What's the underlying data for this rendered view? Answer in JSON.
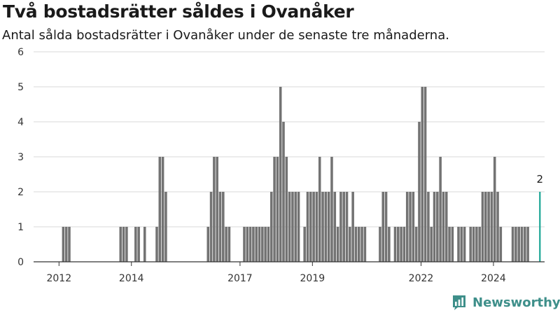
{
  "chart_data": {
    "type": "bar",
    "title": "Två bostadsrätter såldes i Ovanåker",
    "subtitle": "Antal sålda bostadsrätter i Ovanåker under de senaste tre månaderna.",
    "xlabel": "",
    "ylabel": "",
    "ylim": [
      0,
      6
    ],
    "yticks": [
      0,
      1,
      2,
      3,
      4,
      5,
      6
    ],
    "x_start": "2012-01",
    "x_end": "2024-10",
    "xticks": [
      "2012",
      "2014",
      "2017",
      "2019",
      "2022",
      "2024"
    ],
    "grid": true,
    "legend": "none",
    "bar_color": "#737373",
    "highlight_color": "#1aa595",
    "highlight_label": "2",
    "series": [
      {
        "values": [
          0,
          1,
          1,
          1,
          0,
          0,
          0,
          0,
          0,
          0,
          0,
          0,
          0,
          0,
          0,
          0,
          0,
          0,
          0,
          0,
          1,
          1,
          1,
          0,
          0,
          1,
          1,
          0,
          1,
          0,
          0,
          0,
          1,
          3,
          3,
          2,
          0,
          0,
          0,
          0,
          0,
          0,
          0,
          0,
          0,
          0,
          0,
          0,
          0,
          1,
          2,
          3,
          3,
          2,
          2,
          1,
          1,
          0,
          0,
          0,
          0,
          1,
          1,
          1,
          1,
          1,
          1,
          1,
          1,
          1,
          2,
          3,
          3,
          5,
          4,
          3,
          2,
          2,
          2,
          2,
          0,
          1,
          2,
          2,
          2,
          2,
          3,
          2,
          2,
          2,
          3,
          2,
          1,
          2,
          2,
          2,
          1,
          2,
          1,
          1,
          1,
          1,
          0,
          0,
          0,
          0,
          1,
          2,
          2,
          1,
          0,
          1,
          1,
          1,
          1,
          2,
          2,
          2,
          1,
          4,
          5,
          5,
          2,
          1,
          2,
          2,
          3,
          2,
          2,
          1,
          1,
          0,
          1,
          1,
          1,
          0,
          1,
          1,
          1,
          1,
          2,
          2,
          2,
          2,
          3,
          2,
          1,
          0,
          0,
          0,
          1,
          1,
          1,
          1,
          1,
          1,
          0,
          0,
          0,
          2
        ]
      }
    ]
  },
  "branding": {
    "logo_text": "Newsworthy",
    "logo_icon": "newsworthy-logo-icon"
  }
}
